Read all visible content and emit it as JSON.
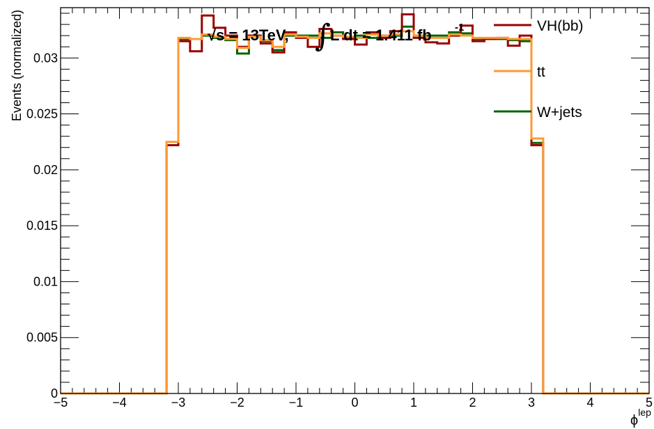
{
  "chart_data": {
    "type": "line",
    "title": "",
    "annotation": {
      "prefix": "√s = 13TeV, ",
      "integral_sign": "∫",
      "suffix": "L dt = 1.411 fb",
      "superscript": "-1"
    },
    "xlabel": "ϕ",
    "xlabel_superscript": "lep",
    "ylabel": "Events (normalized)",
    "xlim": [
      -5,
      5
    ],
    "ylim": [
      0,
      0.0345
    ],
    "x_ticks": [
      "−5",
      "−4",
      "−3",
      "−2",
      "−1",
      "0",
      "1",
      "2",
      "3",
      "4",
      "5"
    ],
    "y_ticks": [
      "0",
      "0.005",
      "0.01",
      "0.015",
      "0.02",
      "0.025",
      "0.03"
    ],
    "legend_placement": "top-right",
    "grid": false,
    "bin_edges": [
      -5.0,
      -4.8,
      -4.6,
      -4.4,
      -4.2,
      -4.0,
      -3.8,
      -3.6,
      -3.4,
      -3.2,
      -3.0,
      -2.8,
      -2.6,
      -2.4,
      -2.2,
      -2.0,
      -1.8,
      -1.6,
      -1.4,
      -1.2,
      -1.0,
      -0.8,
      -0.6,
      -0.4,
      -0.2,
      0.0,
      0.2,
      0.4,
      0.6,
      0.8,
      1.0,
      1.2,
      1.4,
      1.6,
      1.8,
      2.0,
      2.2,
      2.4,
      2.6,
      2.8,
      3.0,
      3.2,
      3.4,
      3.6,
      3.8,
      4.0,
      4.2,
      4.4,
      4.6,
      4.8,
      5.0
    ],
    "series": [
      {
        "name": "W+jets",
        "color": "#006400",
        "values": [
          0,
          0,
          0,
          0,
          0,
          0,
          0,
          0,
          0,
          0.0222,
          0.0317,
          0.0317,
          0.032,
          0.0318,
          0.0316,
          0.0304,
          0.032,
          0.0315,
          0.0307,
          0.032,
          0.032,
          0.032,
          0.0318,
          0.0323,
          0.0318,
          0.032,
          0.0318,
          0.032,
          0.032,
          0.0328,
          0.032,
          0.032,
          0.032,
          0.0323,
          0.0322,
          0.0317,
          0.0317,
          0.0317,
          0.0316,
          0.0315,
          0.0224,
          0,
          0,
          0,
          0,
          0,
          0,
          0,
          0,
          0
        ]
      },
      {
        "name": "VH(bb)",
        "color": "#990000",
        "values": [
          0,
          0,
          0,
          0,
          0,
          0,
          0,
          0,
          0,
          0.0222,
          0.0315,
          0.0306,
          0.0338,
          0.0327,
          0.032,
          0.031,
          0.032,
          0.0313,
          0.0305,
          0.0323,
          0.0318,
          0.031,
          0.0326,
          0.032,
          0.0317,
          0.0312,
          0.0323,
          0.0318,
          0.0324,
          0.0339,
          0.0318,
          0.0314,
          0.0313,
          0.032,
          0.0329,
          0.0315,
          0.0317,
          0.0318,
          0.0311,
          0.032,
          0.0222,
          0,
          0,
          0,
          0,
          0,
          0,
          0,
          0,
          0
        ]
      },
      {
        "name": "tt",
        "color": "#ff9933",
        "values": [
          0,
          0,
          0,
          0,
          0,
          0,
          0,
          0,
          0,
          0.0225,
          0.0318,
          0.0317,
          0.0321,
          0.0319,
          0.0317,
          0.0309,
          0.0319,
          0.0316,
          0.031,
          0.0321,
          0.0319,
          0.0318,
          0.0322,
          0.032,
          0.0319,
          0.0318,
          0.0321,
          0.032,
          0.0321,
          0.0324,
          0.032,
          0.0318,
          0.0318,
          0.0321,
          0.032,
          0.0318,
          0.0318,
          0.0318,
          0.0317,
          0.0317,
          0.0228,
          0,
          0,
          0,
          0,
          0,
          0,
          0,
          0,
          0
        ]
      }
    ]
  }
}
